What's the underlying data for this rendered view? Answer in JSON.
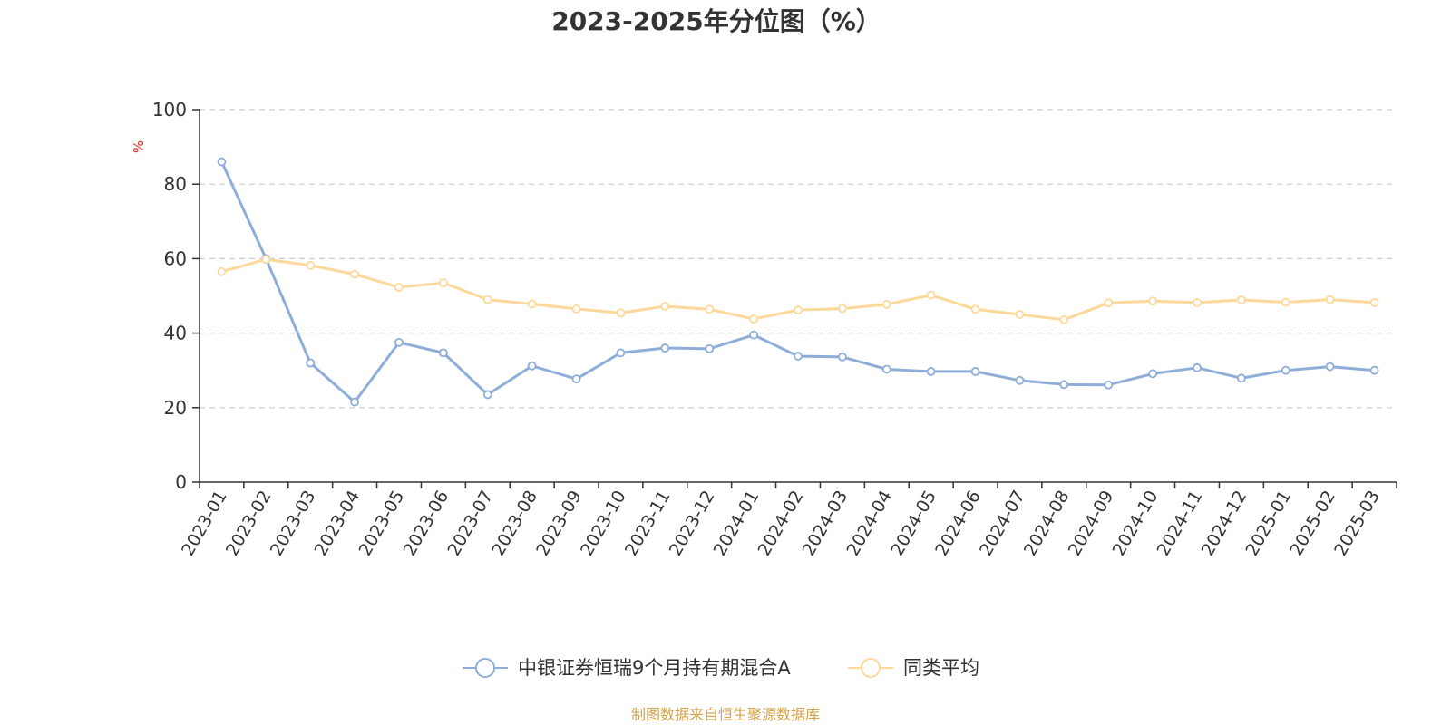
{
  "chart_data": {
    "type": "line",
    "title": "2023-2025年分位图（%）",
    "ylabel": "%",
    "xlabel": "",
    "ylim": [
      0,
      100
    ],
    "yticks": [
      0,
      20,
      40,
      60,
      80,
      100
    ],
    "grid": true,
    "legend_position": "bottom",
    "categories": [
      "2023-01",
      "2023-02",
      "2023-03",
      "2023-04",
      "2023-05",
      "2023-06",
      "2023-07",
      "2023-08",
      "2023-09",
      "2023-10",
      "2023-11",
      "2023-12",
      "2024-01",
      "2024-02",
      "2024-03",
      "2024-04",
      "2024-05",
      "2024-06",
      "2024-07",
      "2024-08",
      "2024-09",
      "2024-10",
      "2024-11",
      "2024-12",
      "2025-01",
      "2025-02",
      "2025-03"
    ],
    "series": [
      {
        "name": "中银证券恒瑞9个月持有期混合A",
        "color": "#8eaed9",
        "values": [
          86,
          60,
          32,
          21.5,
          37.5,
          34.7,
          23.5,
          31.2,
          27.7,
          34.7,
          36,
          35.8,
          39.5,
          33.8,
          33.6,
          30.3,
          29.7,
          29.7,
          27.3,
          26.2,
          26.1,
          29.1,
          30.7,
          27.9,
          30,
          31,
          30
        ]
      },
      {
        "name": "同类平均",
        "color": "#fcd99a",
        "values": [
          56.5,
          59.8,
          58.2,
          55.8,
          52.3,
          53.5,
          49,
          47.8,
          46.5,
          45.4,
          47.2,
          46.4,
          43.8,
          46.2,
          46.6,
          47.7,
          50.2,
          46.4,
          45,
          43.6,
          48.1,
          48.6,
          48.2,
          48.9,
          48.3,
          49,
          48.2
        ]
      }
    ],
    "unit_color": "#e8241c"
  },
  "footer": {
    "source": "制图数据来自恒生聚源数据库",
    "color": "#d4a24a"
  }
}
